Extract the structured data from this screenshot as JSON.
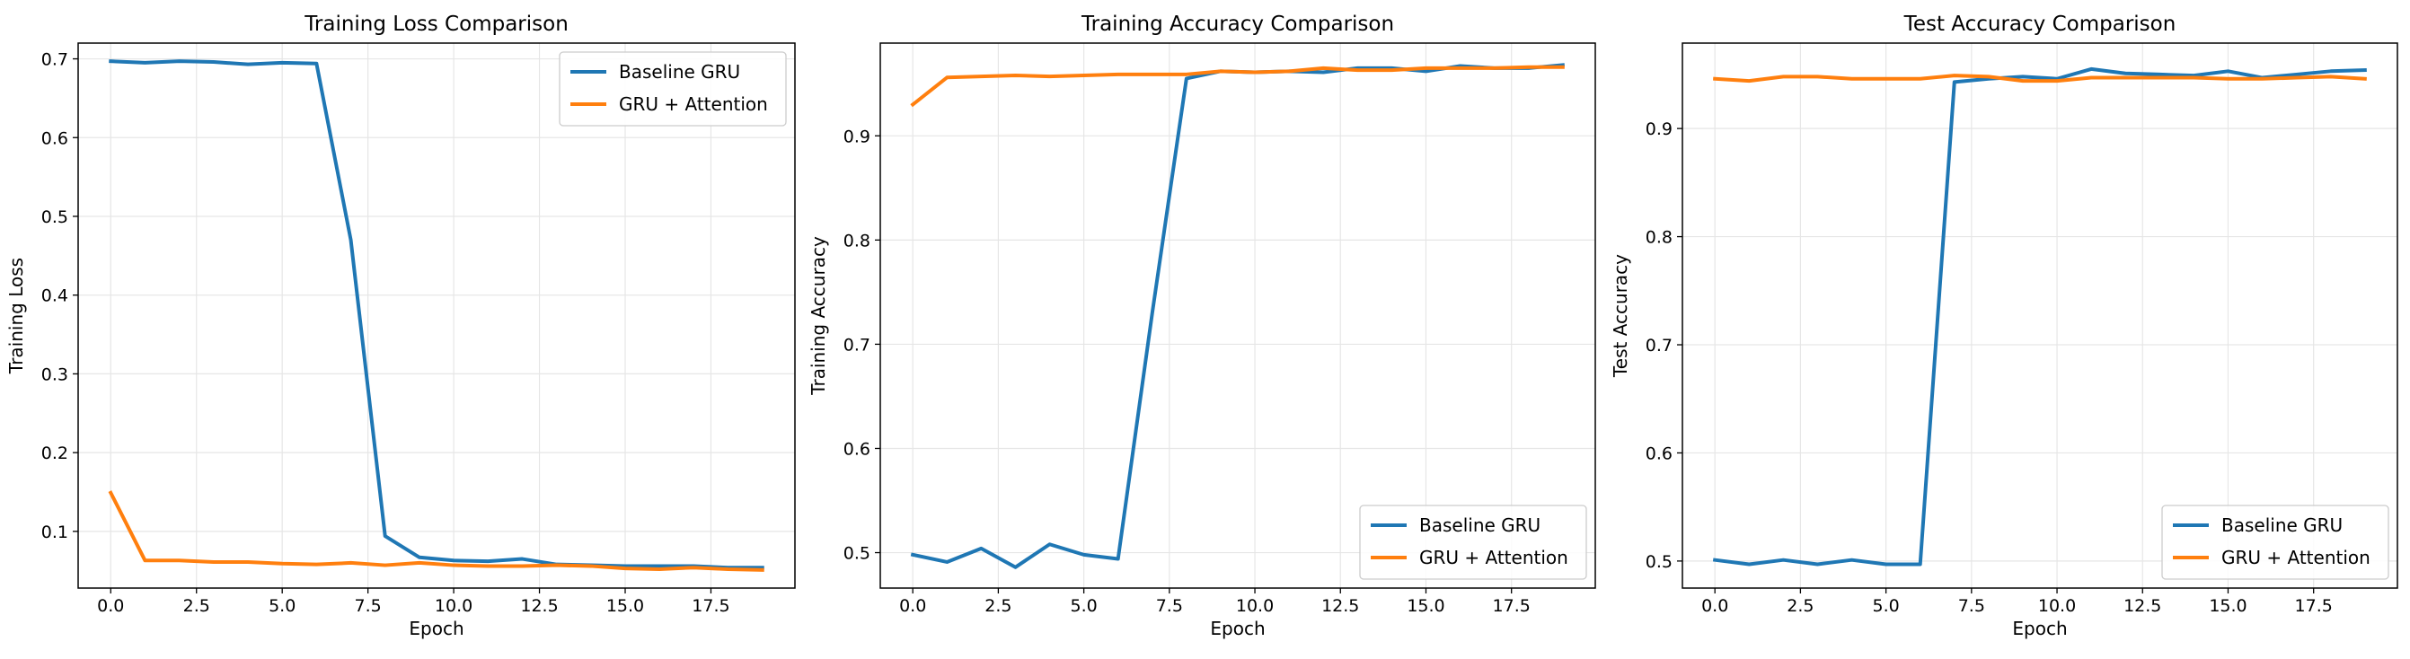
{
  "chart_data": [
    {
      "type": "line",
      "title": "Training Loss Comparison",
      "xlabel": "Epoch",
      "ylabel": "Training Loss",
      "xlim": [
        -0.95,
        19.95
      ],
      "ylim": [
        0.028,
        0.72
      ],
      "xticks": [
        0,
        2.5,
        5,
        7.5,
        10,
        12.5,
        15,
        17.5
      ],
      "xtick_labels": [
        "0.0",
        "2.5",
        "5.0",
        "7.5",
        "10.0",
        "12.5",
        "15.0",
        "17.5"
      ],
      "yticks": [
        0.1,
        0.2,
        0.3,
        0.4,
        0.5,
        0.6,
        0.7
      ],
      "ytick_labels": [
        "0.1",
        "0.2",
        "0.3",
        "0.4",
        "0.5",
        "0.6",
        "0.7"
      ],
      "grid": true,
      "legend": "top-right",
      "x": [
        0,
        1,
        2,
        3,
        4,
        5,
        6,
        7,
        8,
        9,
        10,
        11,
        12,
        13,
        14,
        15,
        16,
        17,
        18,
        19
      ],
      "series": [
        {
          "name": "Baseline GRU",
          "color": "#1f77b4",
          "values": [
            0.697,
            0.695,
            0.697,
            0.696,
            0.693,
            0.695,
            0.694,
            0.47,
            0.094,
            0.067,
            0.063,
            0.062,
            0.065,
            0.058,
            0.057,
            0.056,
            0.056,
            0.056,
            0.054,
            0.054
          ]
        },
        {
          "name": "GRU + Attention",
          "color": "#ff7f0e",
          "values": [
            0.149,
            0.063,
            0.063,
            0.061,
            0.061,
            0.059,
            0.058,
            0.06,
            0.057,
            0.06,
            0.057,
            0.056,
            0.056,
            0.057,
            0.056,
            0.053,
            0.052,
            0.054,
            0.052,
            0.051
          ]
        }
      ]
    },
    {
      "type": "line",
      "title": "Training Accuracy Comparison",
      "xlabel": "Epoch",
      "ylabel": "Training Accuracy",
      "xlim": [
        -0.95,
        19.95
      ],
      "ylim": [
        0.466,
        0.989
      ],
      "xticks": [
        0,
        2.5,
        5,
        7.5,
        10,
        12.5,
        15,
        17.5
      ],
      "xtick_labels": [
        "0.0",
        "2.5",
        "5.0",
        "7.5",
        "10.0",
        "12.5",
        "15.0",
        "17.5"
      ],
      "yticks": [
        0.5,
        0.6,
        0.7,
        0.8,
        0.9
      ],
      "ytick_labels": [
        "0.5",
        "0.6",
        "0.7",
        "0.8",
        "0.9"
      ],
      "grid": true,
      "legend": "bottom-right",
      "x": [
        0,
        1,
        2,
        3,
        4,
        5,
        6,
        7,
        8,
        9,
        10,
        11,
        12,
        13,
        14,
        15,
        16,
        17,
        18,
        19
      ],
      "series": [
        {
          "name": "Baseline GRU",
          "color": "#1f77b4",
          "values": [
            0.498,
            0.491,
            0.504,
            0.486,
            0.508,
            0.498,
            0.494,
            0.73,
            0.955,
            0.962,
            0.961,
            0.962,
            0.961,
            0.965,
            0.965,
            0.962,
            0.967,
            0.965,
            0.965,
            0.968
          ]
        },
        {
          "name": "GRU + Attention",
          "color": "#ff7f0e",
          "values": [
            0.93,
            0.956,
            0.957,
            0.958,
            0.957,
            0.958,
            0.959,
            0.959,
            0.959,
            0.962,
            0.961,
            0.962,
            0.965,
            0.963,
            0.963,
            0.965,
            0.965,
            0.965,
            0.966,
            0.966
          ]
        }
      ]
    },
    {
      "type": "line",
      "title": "Test Accuracy Comparison",
      "xlabel": "Epoch",
      "ylabel": "Test Accuracy",
      "xlim": [
        -0.95,
        19.95
      ],
      "ylim": [
        0.475,
        0.979
      ],
      "xticks": [
        0,
        2.5,
        5,
        7.5,
        10,
        12.5,
        15,
        17.5
      ],
      "xtick_labels": [
        "0.0",
        "2.5",
        "5.0",
        "7.5",
        "10.0",
        "12.5",
        "15.0",
        "17.5"
      ],
      "yticks": [
        0.5,
        0.6,
        0.7,
        0.8,
        0.9
      ],
      "ytick_labels": [
        "0.5",
        "0.6",
        "0.7",
        "0.8",
        "0.9"
      ],
      "grid": true,
      "legend": "bottom-right",
      "x": [
        0,
        1,
        2,
        3,
        4,
        5,
        6,
        7,
        8,
        9,
        10,
        11,
        12,
        13,
        14,
        15,
        16,
        17,
        18,
        19
      ],
      "series": [
        {
          "name": "Baseline GRU",
          "color": "#1f77b4",
          "values": [
            0.501,
            0.497,
            0.501,
            0.497,
            0.501,
            0.497,
            0.497,
            0.943,
            0.946,
            0.948,
            0.946,
            0.955,
            0.951,
            0.95,
            0.949,
            0.953,
            0.947,
            0.95,
            0.953,
            0.954
          ]
        },
        {
          "name": "GRU + Attention",
          "color": "#ff7f0e",
          "values": [
            0.946,
            0.944,
            0.948,
            0.948,
            0.946,
            0.946,
            0.946,
            0.949,
            0.948,
            0.944,
            0.944,
            0.947,
            0.947,
            0.947,
            0.947,
            0.946,
            0.946,
            0.947,
            0.948,
            0.946
          ]
        }
      ]
    }
  ]
}
